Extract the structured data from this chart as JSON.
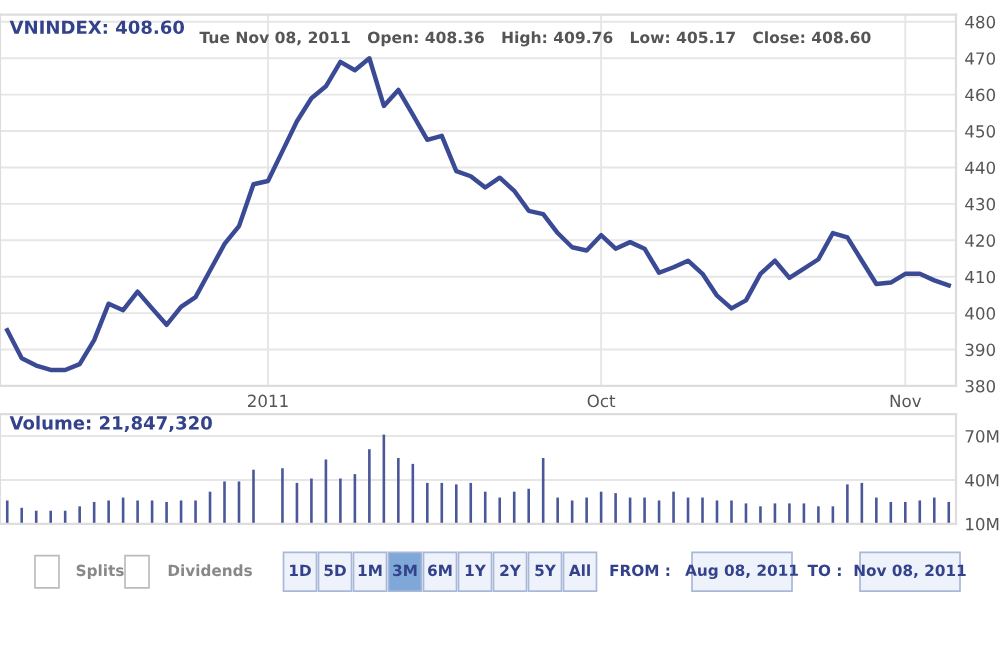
{
  "chart_data": [
    {
      "type": "line",
      "title": "VNINDEX: 408.60",
      "subtitle": "Tue Nov 08, 2011   Open: 408.36   High: 409.76   Low: 405.17   Close: 408.60",
      "grid": true,
      "marker": "none",
      "line_style": "solid",
      "categories": [
        null,
        null,
        null,
        null,
        null,
        null,
        null,
        null,
        null,
        null,
        null,
        null,
        null,
        null,
        null,
        null,
        null,
        null,
        "2011",
        null,
        null,
        null,
        null,
        null,
        null,
        null,
        null,
        null,
        null,
        null,
        null,
        null,
        null,
        null,
        null,
        null,
        null,
        null,
        null,
        null,
        null,
        "Oct",
        null,
        null,
        null,
        null,
        null,
        null,
        null,
        null,
        null,
        null,
        null,
        null,
        null,
        null,
        null,
        null,
        null,
        null,
        null,
        null,
        "Nov",
        null,
        null,
        null
      ],
      "series": [
        {
          "color": "#3b4a94",
          "values": [
            395.3,
            387.6,
            385.6,
            384.4,
            384.4,
            386,
            392.6,
            402.6,
            400.8,
            405.9,
            401.3,
            396.8,
            401.7,
            404.4,
            411.7,
            419,
            423.9,
            435.4,
            436.3,
            444.5,
            452.7,
            459,
            462.3,
            469,
            466.7,
            470,
            456.9,
            461.3,
            454.5,
            447.6,
            448.7,
            439,
            437.6,
            434.5,
            437.2,
            433.6,
            428.1,
            427.2,
            422,
            418.1,
            417.2,
            421.4,
            417.7,
            419.5,
            417.7,
            411.1,
            412.6,
            414.4,
            410.8,
            404.8,
            401.3,
            403.5,
            410.8,
            414.4,
            409.7,
            412.2,
            414.8,
            422,
            420.8,
            414.4,
            408,
            408.4,
            410.8,
            410.8,
            409,
            407.6
          ]
        }
      ],
      "ylim": [
        380,
        482
      ],
      "yticks": [
        380,
        390,
        400,
        410,
        420,
        430,
        440,
        450,
        460,
        470,
        480
      ]
    },
    {
      "type": "bar",
      "title": "Volume: 21,847,320",
      "grid": true,
      "annotations": [
        "Splits",
        "Dividends",
        "1D",
        "5D",
        "1M",
        "3M",
        "6M",
        "1Y",
        "2Y",
        "5Y",
        "All",
        "FROM :",
        "Aug 08, 2011",
        "TO :",
        "Nov 08, 2011"
      ],
      "categories": [
        null,
        null,
        null,
        null,
        null,
        null,
        null,
        null,
        null,
        null,
        null,
        null,
        null,
        null,
        null,
        null,
        null,
        null,
        null,
        null,
        null,
        null,
        null,
        null,
        null,
        null,
        null,
        null,
        null,
        null,
        null,
        null,
        null,
        null,
        null,
        null,
        null,
        null,
        null,
        null,
        null,
        null,
        null,
        null,
        null,
        null,
        null,
        null,
        null,
        null,
        null,
        null,
        null,
        null,
        null,
        null,
        null,
        null,
        null,
        null,
        null,
        null,
        null,
        null,
        null,
        null
      ],
      "series": [
        {
          "color": "#4a5799",
          "values": [
            26,
            21,
            19,
            19,
            19,
            22,
            25,
            26,
            28,
            26,
            26,
            25,
            26,
            26,
            32,
            39,
            39,
            47,
            null,
            48,
            38,
            41,
            54,
            41,
            44,
            61,
            71,
            55,
            51,
            38,
            38,
            37,
            38,
            32,
            28,
            32,
            34,
            55,
            28,
            26,
            28,
            32,
            31,
            28,
            28,
            26,
            32,
            28,
            28,
            26,
            26,
            24,
            22,
            24,
            24,
            24,
            22,
            22,
            37,
            38,
            28,
            25,
            25,
            26,
            28,
            25
          ]
        }
      ],
      "ylim": [
        10,
        85
      ],
      "yticks": [
        {
          "value": 10,
          "label": "10M"
        },
        {
          "value": 40,
          "label": "40M"
        },
        {
          "value": 70,
          "label": "70M"
        }
      ],
      "tick_labels": "y"
    }
  ]
}
